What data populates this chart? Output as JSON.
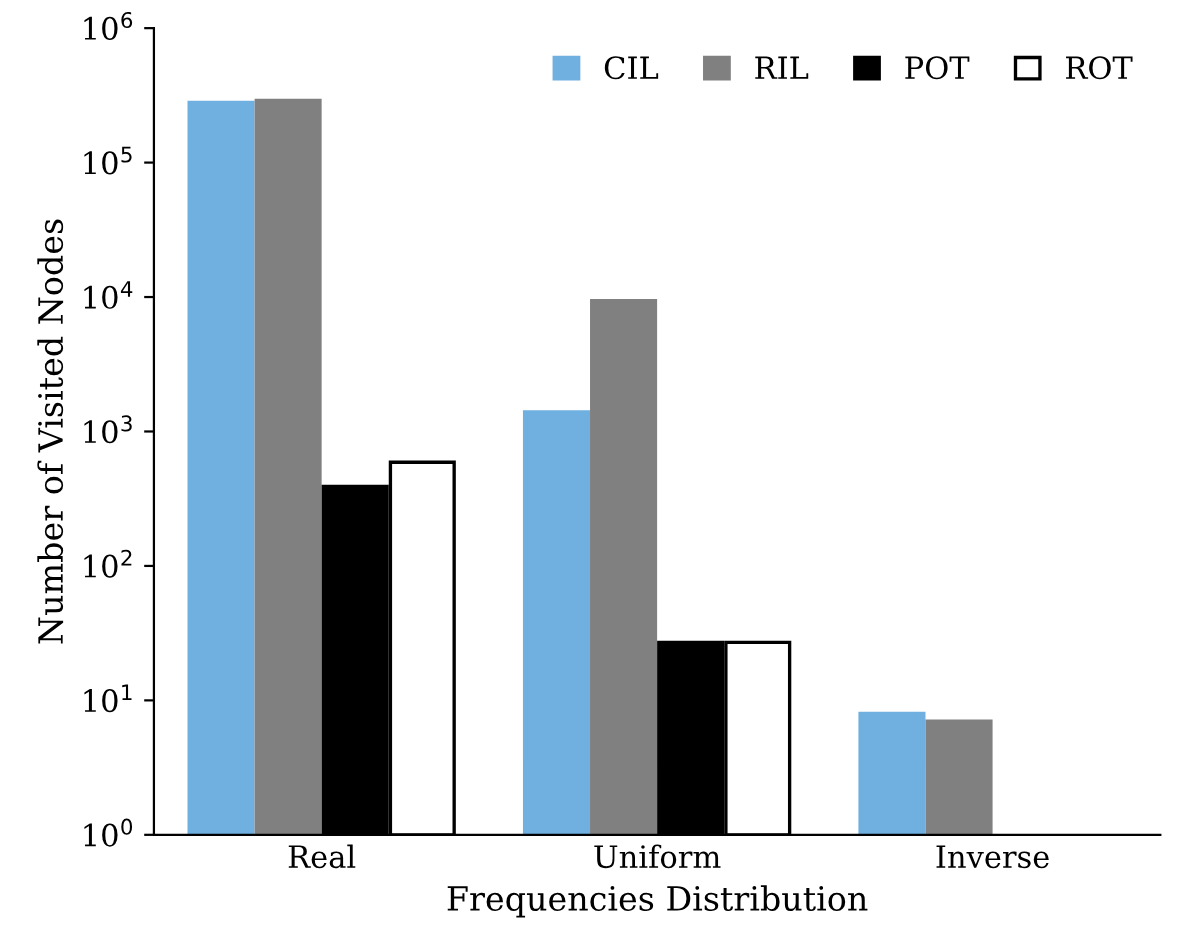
{
  "chart_data": {
    "type": "bar",
    "xlabel": "Frequencies Distribution",
    "ylabel": "Number of Visited Nodes",
    "categories": [
      "Real",
      "Uniform",
      "Inverse"
    ],
    "series": [
      {
        "name": "CIL",
        "color": "#6fb0e0",
        "values": [
          280000,
          1400,
          8
        ]
      },
      {
        "name": "RIL",
        "color": "#808080",
        "values": [
          290000,
          9400,
          7
        ]
      },
      {
        "name": "POT",
        "color": "#000000",
        "values": [
          390,
          27,
          null
        ]
      },
      {
        "name": "ROT",
        "color": "#ffffff",
        "values": [
          590,
          27,
          null
        ]
      }
    ],
    "log": true,
    "ylim": [
      1,
      1000000
    ],
    "yticks": [
      {
        "value": 1,
        "label": "10$^{0}$"
      },
      {
        "value": 10,
        "label": "10$^{1}$"
      },
      {
        "value": 100,
        "label": "10$^{2}$"
      },
      {
        "value": 1000,
        "label": "10$^{3}$"
      },
      {
        "value": 10000,
        "label": "10$^{4}$"
      },
      {
        "value": 100000,
        "label": "10$^{5}$"
      },
      {
        "value": 1000000,
        "label": "10$^{6}$"
      }
    ],
    "grid": false,
    "legend": "top right"
  }
}
